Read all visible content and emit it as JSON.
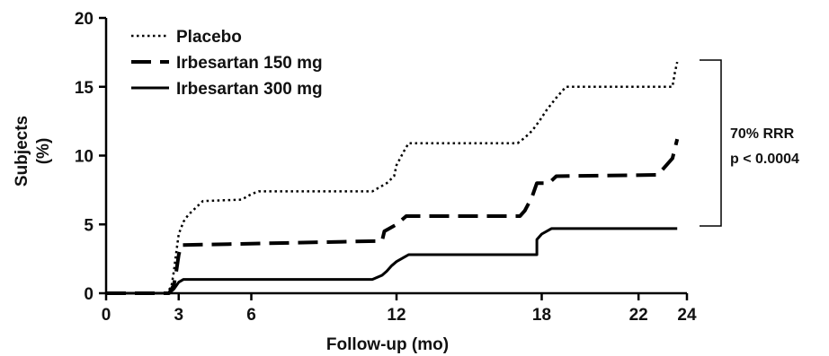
{
  "chart_data": {
    "type": "line",
    "xlabel": "Follow-up (mo)",
    "ylabel": "Subjects (%)",
    "ylabel_lines": [
      "Subjects",
      "(%)"
    ],
    "xlim": [
      0,
      24
    ],
    "ylim": [
      0,
      20
    ],
    "x_ticks": [
      0,
      3,
      6,
      12,
      18,
      22,
      24
    ],
    "y_ticks": [
      0,
      5,
      10,
      15,
      20
    ],
    "grid": false,
    "legend_position": "top-left",
    "series": [
      {
        "name": "Placebo",
        "style": "dotted",
        "x": [
          0,
          2.5,
          2.7,
          2.8,
          2.9,
          3.0,
          3.2,
          3.4,
          3.7,
          4.0,
          5.6,
          5.8,
          6.0,
          6.3,
          11.0,
          11.3,
          11.6,
          11.9,
          12.0,
          12.3,
          12.5,
          17.0,
          17.3,
          17.6,
          17.9,
          18.2,
          18.6,
          19.0,
          23.4,
          23.5,
          23.6
        ],
        "y": [
          0,
          0,
          0.5,
          1.6,
          3.0,
          4.3,
          5.2,
          5.7,
          6.2,
          6.7,
          6.8,
          7.0,
          7.2,
          7.4,
          7.4,
          7.7,
          8.0,
          8.5,
          9.3,
          10.3,
          10.9,
          10.9,
          11.3,
          11.8,
          12.5,
          13.3,
          14.2,
          15.0,
          15.0,
          16.0,
          16.8
        ]
      },
      {
        "name": "Irbesartan 150 mg",
        "style": "dashed",
        "x": [
          0,
          2.6,
          2.8,
          2.9,
          3.0,
          3.1,
          11.4,
          11.5,
          12.0,
          12.4,
          17.1,
          17.3,
          17.6,
          17.8,
          18.3,
          18.6,
          22.8,
          23.2,
          23.4,
          23.6
        ],
        "y": [
          0,
          0,
          0.6,
          1.6,
          2.8,
          3.5,
          3.8,
          4.5,
          5.0,
          5.6,
          5.6,
          6.0,
          7.0,
          8.0,
          8.0,
          8.5,
          8.6,
          9.4,
          9.8,
          11.2
        ]
      },
      {
        "name": "Irbesartan 300 mg",
        "style": "solid",
        "x": [
          0,
          2.6,
          2.8,
          3.0,
          3.2,
          11.0,
          11.4,
          11.6,
          11.8,
          12.0,
          12.3,
          12.5,
          17.8,
          17.8,
          18.0,
          18.4,
          23.6
        ],
        "y": [
          0,
          0,
          0.3,
          0.8,
          1.0,
          1.0,
          1.3,
          1.6,
          2.0,
          2.3,
          2.6,
          2.8,
          2.8,
          3.9,
          4.3,
          4.7,
          4.7
        ]
      }
    ],
    "annotations": [
      "70% RRR",
      "p < 0.0004"
    ]
  }
}
